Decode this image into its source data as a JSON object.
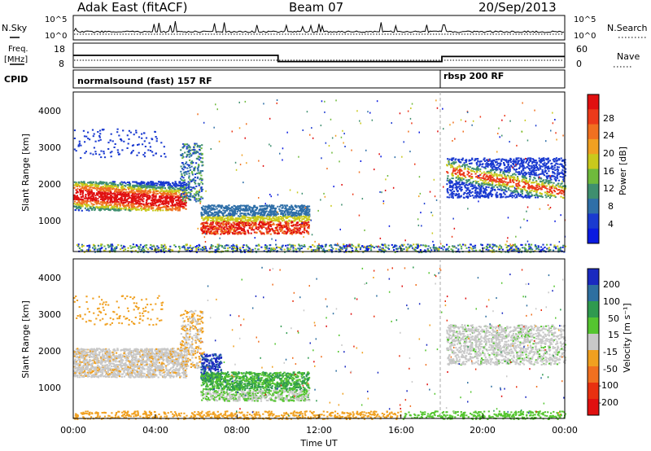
{
  "header": {
    "title": "Adak East (fitACF)",
    "beam": "Beam 07",
    "date": "20/Sep/2013"
  },
  "noise_panel": {
    "left_label": "N.Sky",
    "right_label": "N.Search",
    "left_ticks": [
      "10^5",
      "10^0"
    ],
    "right_ticks": [
      "10^5",
      "10^0"
    ]
  },
  "freq_panel": {
    "left_label_line1": "Freq.",
    "left_label_line2": "[MHz]",
    "right_label": "Nave",
    "left_ticks": [
      "18",
      "8"
    ],
    "right_ticks": [
      "60",
      "0"
    ],
    "freq_steps": [
      {
        "x": [
          0,
          10
        ],
        "y": 13
      },
      {
        "x": [
          10,
          18
        ],
        "y": 10.3
      },
      {
        "x": [
          18,
          24
        ],
        "y": 12.5
      }
    ],
    "nave_level": 0.2
  },
  "cpid_panel": {
    "label": "CPID",
    "modes": [
      {
        "name": "normalsound (fast) 157 RF",
        "start_hour": 0
      },
      {
        "name": "rbsp 200 RF",
        "start_hour": 18
      }
    ]
  },
  "chart_data": [
    {
      "type": "heatmap",
      "name": "power",
      "ylabel": "Slant Range [km]",
      "ylim": [
        200,
        4600
      ],
      "y_ticks": [
        "1000",
        "2000",
        "3000",
        "4000"
      ],
      "xlim_hours": [
        0,
        24
      ],
      "colorbar": {
        "label": "Power [dB]",
        "ticks": [
          "4",
          "8",
          "12",
          "16",
          "20",
          "24",
          "28"
        ],
        "colors": [
          "#0a1ae0",
          "#1a3ad0",
          "#2f6fa8",
          "#3f8f6f",
          "#6fba3c",
          "#c9c91c",
          "#f0a022",
          "#f07020",
          "#ec3a1a",
          "#e01010"
        ]
      },
      "features": [
        {
          "hours": [
            0,
            5.5
          ],
          "range_km": [
            1300,
            2200
          ],
          "level": "high"
        },
        {
          "hours": [
            6,
            11.5
          ],
          "range_km": [
            700,
            1500
          ],
          "level": "high"
        },
        {
          "hours": [
            18,
            24
          ],
          "range_km": [
            1700,
            2800
          ],
          "level": "medium"
        },
        {
          "hours": [
            0,
            24
          ],
          "range_km": [
            200,
            400
          ],
          "level": "low"
        }
      ]
    },
    {
      "type": "heatmap",
      "name": "velocity",
      "ylabel": "Slant Range [km]",
      "ylim": [
        200,
        4600
      ],
      "y_ticks": [
        "1000",
        "2000",
        "3000",
        "4000"
      ],
      "xlim_hours": [
        0,
        24
      ],
      "colorbar": {
        "label": "Velocity [m s⁻¹]",
        "ticks": [
          "200",
          "100",
          "50",
          "15",
          "-15",
          "-50",
          "-100",
          "-200"
        ],
        "colors": [
          "#1a2ac0",
          "#2e6fa0",
          "#2f9a4f",
          "#55c530",
          "#c8c8c8",
          "#f0a020",
          "#f07020",
          "#e83010",
          "#e01010"
        ]
      }
    }
  ],
  "x_axis": {
    "label": "Time UT",
    "ticks": [
      "00:00",
      "04:00",
      "08:00",
      "12:00",
      "16:00",
      "20:00",
      "00:00"
    ],
    "values": [
      0,
      4,
      8,
      12,
      16,
      20,
      24
    ]
  }
}
